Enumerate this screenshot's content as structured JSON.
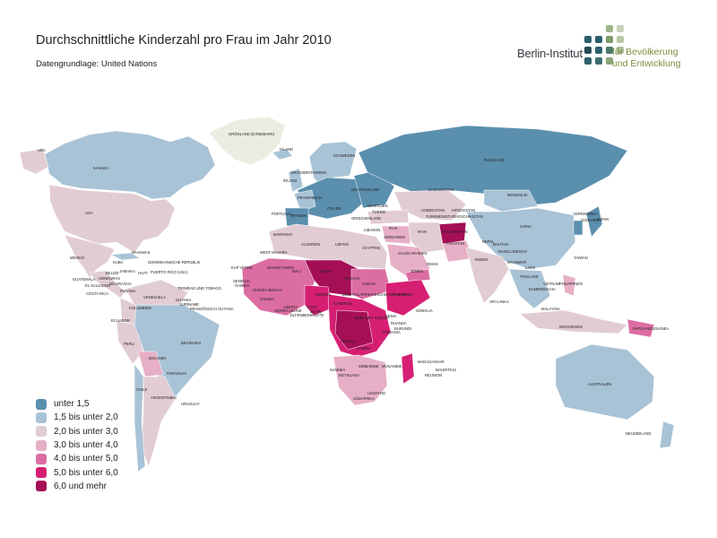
{
  "title": "Durchschnittliche Kinderzahl pro Frau im Jahr 2010",
  "subtitle": "Datengrundlage: United Nations",
  "logo": {
    "name": "Berlin-Institut",
    "tagline_1": "für Bevölkerung",
    "tagline_2": "und Entwicklung"
  },
  "legend": [
    {
      "label": "unter 1,5",
      "color": "#5b8fae"
    },
    {
      "label": "1,5 bis unter 2,0",
      "color": "#a9c3d6"
    },
    {
      "label": "2,0 bis unter 3,0",
      "color": "#e2ccd3"
    },
    {
      "label": "3,0 bis unter 4,0",
      "color": "#e7afc6"
    },
    {
      "label": "4,0 bis unter 5,0",
      "color": "#dc6da3"
    },
    {
      "label": "5,0 bis unter 6,0",
      "color": "#d61f73"
    },
    {
      "label": "6,0 und mehr",
      "color": "#a50f55"
    }
  ],
  "countries": {
    "groenland": "GRÖNLAND (DÄNEMARK)",
    "usa": "USA",
    "kanada": "KANADA",
    "mexiko": "MEXIKO",
    "bahamas": "BAHAMAS",
    "kuba": "KUBA",
    "dominikanische_republik": "DOMINIKANISCHE REPUBLIK",
    "puerto_rico": "PUERTO RICO (USA)",
    "jamaika": "JAMAIKA",
    "belize": "BELIZE",
    "haiti": "HAITI",
    "guatemala": "GUATEMALA",
    "honduras": "HONDURAS",
    "el_salvador": "EL SALVADOR",
    "nicaragua": "NICARAGUA",
    "costa_rica": "COSTA RICA",
    "panama": "PANAMA",
    "trinidad": "TRINIDAD UND TOBAGO",
    "venezuela": "VENEZUELA",
    "guyana": "GUYANA",
    "suriname": "SURINAME",
    "franz_guayana": "FRANZÖSISCH GUYANA",
    "kolumbien": "KOLUMBIEN",
    "ecuador": "ECUADOR",
    "peru": "PERU",
    "brasilien": "BRASILIEN",
    "bolivien": "BOLIVIEN",
    "paraguay": "PARAGUAY",
    "chile": "CHILE",
    "argentinien": "ARGENTINIEN",
    "uruguay": "URUGUAY",
    "island": "ISLAND",
    "norwegen": "NORWEGEN",
    "schweden": "SCHWEDEN",
    "finnland": "FINNLAND",
    "grossbritannien": "GROSSBRITANNIEN",
    "irland": "IRLAND",
    "deutschland": "DEUTSCHLAND",
    "frankreich": "FRANKREICH",
    "spanien": "SPANIEN",
    "portugal": "PORTUGAL",
    "italien": "ITALIEN",
    "polen": "POLEN",
    "ukraine": "UKRAINE",
    "rumaenien": "RUMÄNIEN",
    "bulgarien": "BULGARIEN",
    "griechenland": "GRIECHENLAND",
    "tuerkei": "TÜRKEI",
    "georgien": "GEORGIEN",
    "armenien": "ARMENIEN",
    "aserbaidschan": "ASERBAIDSCHAN",
    "russland": "RUSSLAND",
    "kasachstan": "KASACHSTAN",
    "usbekistan": "USBEKISTAN",
    "turkmenistan": "TURKMENISTAN",
    "kirgistan": "KIRGISISTAN",
    "tadschikistan": "TADSCHIKISTAN",
    "afghanistan": "AFGHANISTAN",
    "pakistan": "PAKISTAN",
    "iran": "IRAN",
    "irak": "IRAK",
    "syrien": "SYRIEN",
    "libanon": "LIBANON",
    "israel": "ISRAEL",
    "jordanien": "JORDANIEN",
    "saudi_arabien": "SAUDI-ARABIEN",
    "jemen": "JEMEN",
    "oman": "OMAN",
    "vae": "VAE",
    "kuwait": "KUWAIT",
    "mongolei": "MONGOLEI",
    "china": "CHINA",
    "nordkorea": "NORDKOREA",
    "suedkorea": "SÜDKOREA",
    "japan": "JAPAN",
    "taiwan": "TAIWAN",
    "indien": "INDIEN",
    "nepal": "NEPAL",
    "bhutan": "BHUTAN",
    "bangladesch": "BANGLADESCH",
    "sri_lanka": "SRI LANKA",
    "myanmar": "MYANMAR",
    "thailand": "THAILAND",
    "laos": "LAOS",
    "vietnam": "VIETNAM",
    "kambodscha": "KAMBODSCHA",
    "philippinen": "PHILIPPINEN",
    "malaysia": "MALAYSIA",
    "indonesien": "INDONESIEN",
    "papua": "PAPUA-NEUGUINEA",
    "australien": "AUSTRALIEN",
    "neuseeland": "NEUSEELAND",
    "marokko": "MAROKKO",
    "algerien": "ALGERIEN",
    "libyen": "LIBYEN",
    "aegypten": "ÄGYPTEN",
    "westsahara": "WEST-SAHARA",
    "mauretanien": "MAURETANIEN",
    "mali": "MALI",
    "niger": "NIGER",
    "tschad": "TSCHAD",
    "sudan": "SUDAN",
    "aethiopien": "ÄTHIOPIEN",
    "somalia": "SOMALIA",
    "kenia": "KENIA",
    "senegal": "SENEGAL",
    "gambia": "GAMBIA",
    "guinea": "GUINEA",
    "guinea_bissau": "GUINEA-BISSAU",
    "sierra_leone": "SIERRA LEONE",
    "liberia": "LIBERIA",
    "elfenbeinkueste": "ELFENBEINKÜSTE",
    "togo": "TOGO",
    "benin": "BENIN",
    "nigeria": "NIGERIA",
    "kamerun": "KAMERUN",
    "zentralafrika": "ZENTRALAFRIKANISCHE REPUBLIK",
    "kongo_dr": "DEM. REP. KONGO",
    "angola": "ANGOLA",
    "sambia": "SAMBIA",
    "tansania": "TANSANIA",
    "ruanda": "RUANDA",
    "burundi": "BURUNDI",
    "mosambik": "MOSAMBIK",
    "simbabwe": "SIMBABWE",
    "namibia": "NAMIBIA",
    "botsuana": "BOTSUANA",
    "suedafrika": "SÜDAFRIKA",
    "lesotho": "LESOTHO",
    "madagaskar": "MADAGASKAR",
    "mauritius": "MAURITIUS",
    "reunion": "RÉUNION",
    "kap_verde": "KAP VERDE"
  }
}
